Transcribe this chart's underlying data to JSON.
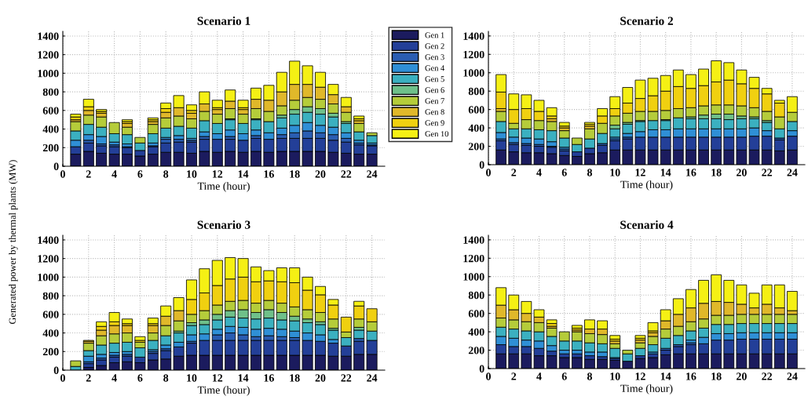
{
  "chart_data": [
    {
      "type": "bar",
      "stacked": true,
      "title": "Scenario 1",
      "xlabel": "Time (hour)",
      "x": [
        1,
        2,
        3,
        4,
        5,
        6,
        7,
        8,
        9,
        10,
        11,
        12,
        13,
        14,
        15,
        16,
        17,
        18,
        19,
        20,
        21,
        22,
        23,
        24
      ],
      "xlim": [
        0,
        25
      ],
      "xticks": [
        0,
        2,
        4,
        6,
        8,
        10,
        12,
        14,
        16,
        18,
        20,
        22,
        24
      ],
      "ylim": [
        0,
        1450
      ],
      "yticks": [
        0,
        200,
        400,
        600,
        800,
        1000,
        1200,
        1400
      ],
      "grid": true,
      "legend": "right",
      "series": [
        {
          "name": "Gen 1",
          "color": "#1b1b5e",
          "values": [
            130,
            160,
            140,
            130,
            130,
            110,
            130,
            150,
            150,
            140,
            160,
            150,
            160,
            150,
            160,
            150,
            160,
            160,
            160,
            160,
            150,
            140,
            130,
            130
          ]
        },
        {
          "name": "Gen 2",
          "color": "#233f98",
          "values": [
            80,
            90,
            80,
            80,
            70,
            60,
            80,
            100,
            110,
            120,
            130,
            140,
            130,
            130,
            140,
            140,
            140,
            140,
            140,
            140,
            130,
            120,
            100,
            90
          ]
        },
        {
          "name": "Gen 3",
          "color": "#2a5db2",
          "values": [
            0,
            30,
            20,
            20,
            10,
            0,
            10,
            40,
            30,
            20,
            30,
            0,
            30,
            0,
            30,
            0,
            40,
            60,
            80,
            60,
            60,
            40,
            20,
            10
          ]
        },
        {
          "name": "Gen 4",
          "color": "#2f8fd6",
          "values": [
            70,
            60,
            80,
            30,
            30,
            0,
            30,
            20,
            40,
            20,
            50,
            60,
            70,
            70,
            60,
            70,
            70,
            80,
            90,
            80,
            80,
            60,
            30,
            20
          ]
        },
        {
          "name": "Gen 5",
          "color": "#3bb0c0",
          "values": [
            100,
            110,
            100,
            90,
            100,
            80,
            100,
            100,
            100,
            110,
            120,
            110,
            110,
            110,
            110,
            120,
            110,
            120,
            110,
            120,
            110,
            100,
            90,
            80
          ]
        },
        {
          "name": "Gen 6",
          "color": "#6fc08a",
          "values": [
            0,
            0,
            0,
            0,
            0,
            0,
            0,
            0,
            0,
            0,
            0,
            0,
            10,
            0,
            10,
            0,
            30,
            50,
            60,
            60,
            40,
            20,
            0,
            0
          ]
        },
        {
          "name": "Gen 7",
          "color": "#b5cc3a",
          "values": [
            100,
            100,
            110,
            120,
            80,
            60,
            100,
            110,
            110,
            100,
            100,
            100,
            110,
            100,
            110,
            110,
            100,
            100,
            100,
            100,
            100,
            100,
            90,
            30
          ]
        },
        {
          "name": "Gen 8",
          "color": "#e0b82a",
          "values": [
            20,
            50,
            40,
            0,
            40,
            0,
            30,
            60,
            90,
            60,
            80,
            50,
            80,
            50,
            100,
            120,
            150,
            170,
            140,
            130,
            100,
            60,
            30,
            0
          ]
        },
        {
          "name": "Gen 9",
          "color": "#f0d010",
          "values": [
            30,
            40,
            20,
            0,
            20,
            0,
            20,
            40,
            0,
            30,
            0,
            20,
            0,
            20,
            0,
            0,
            0,
            0,
            0,
            0,
            0,
            0,
            20,
            0
          ]
        },
        {
          "name": "Gen 10",
          "color": "#f5f014",
          "values": [
            30,
            80,
            20,
            0,
            20,
            0,
            20,
            60,
            130,
            60,
            130,
            80,
            120,
            80,
            120,
            160,
            210,
            250,
            200,
            160,
            110,
            100,
            30,
            0
          ]
        }
      ]
    },
    {
      "type": "bar",
      "stacked": true,
      "title": "Scenario 2",
      "xlabel": "Time (hour)",
      "x": [
        1,
        2,
        3,
        4,
        5,
        6,
        7,
        8,
        9,
        10,
        11,
        12,
        13,
        14,
        15,
        16,
        17,
        18,
        19,
        20,
        21,
        22,
        23,
        24
      ],
      "xlim": [
        0,
        25
      ],
      "xticks": [
        0,
        2,
        4,
        6,
        8,
        10,
        12,
        14,
        16,
        18,
        20,
        22,
        24
      ],
      "ylim": [
        0,
        1450
      ],
      "yticks": [
        0,
        200,
        400,
        600,
        800,
        1000,
        1200,
        1400
      ],
      "grid": true,
      "series": [
        {
          "color": "#1b1b5e",
          "values": [
            160,
            140,
            130,
            130,
            120,
            100,
            90,
            120,
            130,
            160,
            160,
            160,
            160,
            160,
            160,
            160,
            160,
            160,
            160,
            160,
            160,
            160,
            150,
            160
          ]
        },
        {
          "color": "#233f98",
          "values": [
            100,
            80,
            80,
            70,
            70,
            50,
            50,
            60,
            80,
            100,
            120,
            140,
            140,
            140,
            140,
            140,
            140,
            140,
            140,
            140,
            150,
            150,
            120,
            150
          ]
        },
        {
          "color": "#2a5db2",
          "values": [
            20,
            20,
            20,
            20,
            10,
            20,
            0,
            0,
            20,
            20,
            20,
            0,
            0,
            0,
            0,
            0,
            0,
            0,
            0,
            0,
            0,
            0,
            20,
            0
          ]
        },
        {
          "color": "#2f8fd6",
          "values": [
            70,
            60,
            60,
            60,
            50,
            20,
            0,
            0,
            0,
            20,
            40,
            60,
            80,
            80,
            90,
            90,
            90,
            90,
            90,
            90,
            90,
            60,
            0,
            60
          ]
        },
        {
          "color": "#3bb0c0",
          "values": [
            120,
            90,
            100,
            100,
            120,
            100,
            80,
            100,
            110,
            90,
            100,
            110,
            100,
            100,
            120,
            110,
            110,
            110,
            100,
            110,
            100,
            90,
            100,
            100
          ]
        },
        {
          "color": "#6fc08a",
          "values": [
            0,
            0,
            0,
            0,
            0,
            0,
            0,
            0,
            0,
            40,
            20,
            10,
            0,
            10,
            0,
            20,
            40,
            50,
            60,
            30,
            20,
            20,
            0,
            0
          ]
        },
        {
          "color": "#b5cc3a",
          "values": [
            110,
            60,
            100,
            100,
            100,
            80,
            70,
            110,
            110,
            100,
            100,
            100,
            100,
            100,
            100,
            100,
            100,
            100,
            100,
            110,
            100,
            100,
            130,
            100
          ]
        },
        {
          "color": "#e0b82a",
          "values": [
            30,
            0,
            0,
            0,
            30,
            30,
            0,
            30,
            0,
            0,
            0,
            0,
            0,
            0,
            0,
            0,
            0,
            0,
            0,
            0,
            0,
            0,
            0,
            0
          ]
        },
        {
          "color": "#f0d010",
          "values": [
            180,
            150,
            120,
            100,
            30,
            20,
            0,
            20,
            80,
            80,
            110,
            140,
            170,
            210,
            240,
            210,
            220,
            250,
            270,
            240,
            210,
            190,
            150,
            0
          ]
        },
        {
          "color": "#f5f014",
          "values": [
            190,
            170,
            150,
            120,
            90,
            40,
            0,
            20,
            80,
            130,
            170,
            200,
            190,
            170,
            180,
            150,
            180,
            230,
            190,
            150,
            120,
            60,
            30,
            170
          ]
        }
      ]
    },
    {
      "type": "bar",
      "stacked": true,
      "title": "Scenario 3",
      "xlabel": "Time (hour)",
      "ylabel": "Generated power by thermal plants (MW)",
      "x": [
        1,
        2,
        3,
        4,
        5,
        6,
        7,
        8,
        9,
        10,
        11,
        12,
        13,
        14,
        15,
        16,
        17,
        18,
        19,
        20,
        21,
        22,
        23,
        24
      ],
      "xlim": [
        0,
        25
      ],
      "xticks": [
        0,
        2,
        4,
        6,
        8,
        10,
        12,
        14,
        16,
        18,
        20,
        22,
        24
      ],
      "ylim": [
        0,
        1450
      ],
      "yticks": [
        0,
        200,
        400,
        600,
        800,
        1000,
        1200,
        1400
      ],
      "grid": true,
      "series": [
        {
          "color": "#1b1b5e",
          "values": [
            0,
            30,
            50,
            80,
            90,
            80,
            110,
            120,
            150,
            160,
            160,
            160,
            160,
            160,
            160,
            160,
            160,
            160,
            160,
            160,
            150,
            150,
            170,
            170
          ]
        },
        {
          "color": "#233f98",
          "values": [
            0,
            40,
            60,
            60,
            60,
            60,
            70,
            90,
            100,
            130,
            160,
            160,
            160,
            160,
            160,
            160,
            160,
            160,
            160,
            150,
            140,
            110,
            140,
            150
          ]
        },
        {
          "color": "#2a5db2",
          "values": [
            0,
            20,
            20,
            20,
            20,
            0,
            20,
            20,
            0,
            20,
            0,
            60,
            80,
            60,
            40,
            50,
            40,
            30,
            0,
            0,
            0,
            0,
            30,
            0
          ]
        },
        {
          "color": "#2f8fd6",
          "values": [
            0,
            60,
            40,
            30,
            30,
            0,
            20,
            40,
            50,
            70,
            70,
            60,
            70,
            80,
            80,
            80,
            80,
            70,
            80,
            70,
            40,
            0,
            0,
            0
          ]
        },
        {
          "color": "#3bb0c0",
          "values": [
            40,
            60,
            100,
            100,
            100,
            100,
            100,
            100,
            100,
            100,
            100,
            100,
            100,
            100,
            110,
            110,
            100,
            110,
            110,
            110,
            100,
            90,
            90,
            100
          ]
        },
        {
          "color": "#6fc08a",
          "values": [
            0,
            0,
            0,
            0,
            0,
            0,
            0,
            0,
            20,
            30,
            50,
            60,
            70,
            90,
            70,
            90,
            80,
            50,
            40,
            30,
            20,
            0,
            30,
            0
          ]
        },
        {
          "color": "#b5cc3a",
          "values": [
            60,
            80,
            100,
            100,
            100,
            60,
            80,
            110,
            110,
            90,
            100,
            100,
            100,
            100,
            100,
            100,
            100,
            100,
            100,
            100,
            100,
            60,
            90,
            100
          ]
        },
        {
          "color": "#e0b82a",
          "values": [
            0,
            20,
            60,
            90,
            80,
            0,
            80,
            100,
            110,
            0,
            0,
            0,
            0,
            0,
            0,
            0,
            0,
            0,
            0,
            0,
            0,
            0,
            0,
            0
          ]
        },
        {
          "color": "#f0d010",
          "values": [
            0,
            10,
            40,
            40,
            20,
            20,
            20,
            0,
            0,
            160,
            190,
            210,
            240,
            250,
            230,
            210,
            230,
            260,
            210,
            190,
            150,
            160,
            140,
            140
          ]
        },
        {
          "color": "#f5f014",
          "values": [
            0,
            0,
            50,
            100,
            50,
            40,
            60,
            110,
            140,
            210,
            260,
            270,
            230,
            200,
            160,
            110,
            150,
            160,
            140,
            90,
            60,
            0,
            50,
            0
          ]
        }
      ]
    },
    {
      "type": "bar",
      "stacked": true,
      "title": "Scenario 4",
      "xlabel": "Time (hour)",
      "x": [
        1,
        2,
        3,
        4,
        5,
        6,
        7,
        8,
        9,
        10,
        11,
        12,
        13,
        14,
        15,
        16,
        17,
        18,
        19,
        20,
        21,
        22,
        23,
        24
      ],
      "xlim": [
        0,
        25
      ],
      "xticks": [
        0,
        2,
        4,
        6,
        8,
        10,
        12,
        14,
        16,
        18,
        20,
        22,
        24
      ],
      "ylim": [
        0,
        1450
      ],
      "yticks": [
        0,
        200,
        400,
        600,
        800,
        1000,
        1200,
        1400
      ],
      "grid": true,
      "series": [
        {
          "color": "#1b1b5e",
          "values": [
            160,
            160,
            160,
            140,
            140,
            120,
            120,
            100,
            100,
            90,
            80,
            110,
            120,
            150,
            160,
            160,
            160,
            160,
            160,
            160,
            160,
            160,
            160,
            160
          ]
        },
        {
          "color": "#233f98",
          "values": [
            100,
            80,
            80,
            80,
            50,
            40,
            40,
            40,
            30,
            20,
            0,
            30,
            40,
            50,
            80,
            100,
            110,
            150,
            150,
            160,
            160,
            160,
            160,
            160
          ]
        },
        {
          "color": "#2a5db2",
          "values": [
            0,
            0,
            0,
            0,
            0,
            0,
            0,
            0,
            0,
            0,
            0,
            0,
            0,
            20,
            20,
            20,
            0,
            0,
            0,
            0,
            0,
            0,
            0,
            0
          ]
        },
        {
          "color": "#2f8fd6",
          "values": [
            90,
            90,
            70,
            80,
            60,
            40,
            40,
            40,
            50,
            10,
            0,
            0,
            20,
            0,
            0,
            30,
            70,
            70,
            70,
            70,
            70,
            70,
            70,
            70
          ]
        },
        {
          "color": "#3bb0c0",
          "values": [
            100,
            100,
            100,
            100,
            100,
            100,
            100,
            100,
            90,
            100,
            80,
            80,
            80,
            110,
            100,
            100,
            100,
            100,
            100,
            100,
            100,
            100,
            100,
            100
          ]
        },
        {
          "color": "#6fc08a",
          "values": [
            0,
            0,
            0,
            0,
            0,
            0,
            0,
            0,
            0,
            0,
            0,
            0,
            0,
            0,
            0,
            0,
            0,
            0,
            0,
            0,
            0,
            0,
            0,
            0
          ]
        },
        {
          "color": "#b5cc3a",
          "values": [
            100,
            100,
            100,
            100,
            90,
            100,
            100,
            100,
            100,
            50,
            40,
            60,
            90,
            100,
            100,
            100,
            100,
            100,
            100,
            100,
            100,
            100,
            100,
            100
          ]
        },
        {
          "color": "#e0b82a",
          "values": [
            140,
            110,
            90,
            60,
            20,
            0,
            20,
            50,
            60,
            30,
            0,
            30,
            40,
            90,
            130,
            150,
            170,
            150,
            140,
            110,
            70,
            110,
            70,
            40
          ]
        },
        {
          "color": "#f0d010",
          "values": [
            0,
            0,
            0,
            0,
            30,
            0,
            20,
            0,
            0,
            20,
            0,
            20,
            20,
            0,
            0,
            0,
            0,
            0,
            0,
            0,
            0,
            0,
            0,
            0
          ]
        },
        {
          "color": "#f5f014",
          "values": [
            190,
            160,
            130,
            80,
            40,
            0,
            30,
            100,
            90,
            40,
            0,
            30,
            90,
            120,
            170,
            200,
            250,
            290,
            240,
            210,
            160,
            210,
            250,
            210
          ]
        }
      ]
    }
  ]
}
